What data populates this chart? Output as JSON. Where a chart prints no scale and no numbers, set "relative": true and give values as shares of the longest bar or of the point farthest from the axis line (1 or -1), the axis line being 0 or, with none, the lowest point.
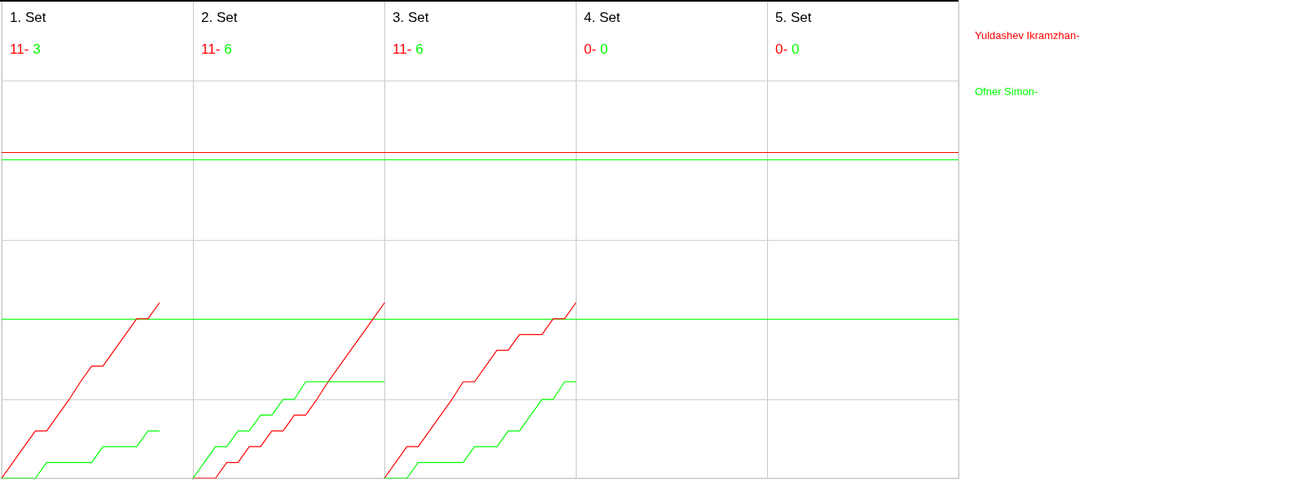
{
  "chart_data": {
    "type": "line",
    "relative": true,
    "tick_labels": false,
    "marker": "none",
    "line_style": "solid",
    "grid": "x",
    "annotations": [
      "1. Set",
      "11-",
      "3",
      "2. Set",
      "11-",
      "6",
      "3. Set",
      "11-",
      "6",
      "4. Set",
      "0-",
      "0",
      "5. Set",
      "0-",
      "0"
    ],
    "categories": [
      null,
      null,
      null,
      null,
      null,
      null,
      null,
      null,
      null,
      null,
      null,
      null,
      null,
      null,
      null,
      null,
      null,
      null,
      null,
      null,
      null,
      null,
      null,
      null,
      null,
      null,
      null,
      null,
      null,
      null,
      null,
      null,
      null,
      null,
      null,
      null,
      null,
      null,
      null,
      null,
      null,
      null,
      null,
      null,
      null,
      null,
      null,
      null,
      null,
      null,
      null,
      null,
      null,
      null,
      null,
      null,
      null,
      null,
      null,
      null,
      null,
      null,
      null,
      null,
      null,
      null,
      null,
      null,
      null,
      null,
      null,
      null,
      null,
      null,
      null,
      null,
      null,
      null,
      null,
      null,
      null,
      null,
      null,
      null,
      null,
      null
    ],
    "ref_lines": [
      {
        "axis": "y",
        "value": 0.45,
        "color": "#d0d0d0"
      },
      {
        "axis": "y",
        "value": 1.36,
        "color": "#d0d0d0"
      },
      {
        "axis": "y",
        "value": 2.27,
        "color": "#d0d0d0"
      },
      {
        "axis": "y",
        "value": 1.86,
        "color": "#ff0000"
      },
      {
        "axis": "y",
        "value": 1.82,
        "color": "#00ff00"
      },
      {
        "axis": "y",
        "value": 0.91,
        "color": "#00ff00"
      }
    ],
    "series": [
      {
        "name": "Yuldashev Ikramzhan-",
        "color": "#ff0000",
        "values": [
          0,
          0.09,
          0.18,
          0.27,
          0.27,
          0.36,
          0.45,
          0.55,
          0.64,
          0.64,
          0.73,
          0.82,
          0.91,
          0.91,
          1,
          null,
          null,
          null,
          null,
          null,
          null,
          null,
          null,
          null,
          null,
          null,
          null,
          null,
          null,
          null,
          null,
          null,
          null,
          null,
          null,
          null,
          null,
          null,
          null,
          null,
          null,
          null,
          null,
          null,
          null,
          null,
          null,
          null,
          null,
          null,
          null,
          null,
          null,
          null,
          null,
          null,
          null,
          null,
          null,
          null,
          null,
          null,
          null,
          null,
          null,
          null,
          null,
          null,
          null,
          null,
          null,
          null,
          null,
          null,
          null,
          null,
          null,
          null,
          null,
          null,
          null,
          null,
          null,
          null,
          null,
          null
        ]
      },
      {
        "name": "Ofner Simon-",
        "color": "#00ff00",
        "values": [
          0,
          0,
          0,
          0,
          0.09,
          0.09,
          0.09,
          0.09,
          0.09,
          0.18,
          0.18,
          0.18,
          0.18,
          0.27,
          0.27,
          null,
          null,
          null,
          null,
          null,
          null,
          null,
          null,
          null,
          null,
          null,
          null,
          null,
          null,
          null,
          null,
          null,
          null,
          null,
          null,
          null,
          null,
          null,
          null,
          null,
          null,
          null,
          null,
          null,
          null,
          null,
          null,
          null,
          null,
          null,
          null,
          null,
          null,
          null,
          null,
          null,
          null,
          null,
          null,
          null,
          null,
          null,
          null,
          null,
          null,
          null,
          null,
          null,
          null,
          null,
          null,
          null,
          null,
          null,
          null,
          null,
          null,
          null,
          null,
          null,
          null,
          null,
          null,
          null,
          null,
          null
        ]
      },
      {
        "color": "#ff0000",
        "values": [
          null,
          null,
          null,
          null,
          null,
          null,
          null,
          null,
          null,
          null,
          null,
          null,
          null,
          null,
          null,
          null,
          null,
          0,
          0,
          0,
          0.09,
          0.09,
          0.18,
          0.18,
          0.27,
          0.27,
          0.36,
          0.36,
          0.45,
          0.55,
          0.64,
          0.73,
          0.82,
          0.91,
          1,
          null,
          null,
          null,
          null,
          null,
          null,
          null,
          null,
          null,
          null,
          null,
          null,
          null,
          null,
          null,
          null,
          null,
          null,
          null,
          null,
          null,
          null,
          null,
          null,
          null,
          null,
          null,
          null,
          null,
          null,
          null,
          null,
          null,
          null,
          null,
          null,
          null,
          null,
          null,
          null,
          null,
          null,
          null,
          null,
          null,
          null,
          null,
          null,
          null,
          null,
          null
        ]
      },
      {
        "color": "#00ff00",
        "values": [
          null,
          null,
          null,
          null,
          null,
          null,
          null,
          null,
          null,
          null,
          null,
          null,
          null,
          null,
          null,
          null,
          null,
          0,
          0.09,
          0.18,
          0.18,
          0.27,
          0.27,
          0.36,
          0.36,
          0.45,
          0.45,
          0.55,
          0.55,
          0.55,
          0.55,
          0.55,
          0.55,
          0.55,
          0.55,
          null,
          null,
          null,
          null,
          null,
          null,
          null,
          null,
          null,
          null,
          null,
          null,
          null,
          null,
          null,
          null,
          null,
          null,
          null,
          null,
          null,
          null,
          null,
          null,
          null,
          null,
          null,
          null,
          null,
          null,
          null,
          null,
          null,
          null,
          null,
          null,
          null,
          null,
          null,
          null,
          null,
          null,
          null,
          null,
          null,
          null,
          null,
          null,
          null,
          null,
          null
        ]
      },
      {
        "color": "#ff0000",
        "values": [
          null,
          null,
          null,
          null,
          null,
          null,
          null,
          null,
          null,
          null,
          null,
          null,
          null,
          null,
          null,
          null,
          null,
          null,
          null,
          null,
          null,
          null,
          null,
          null,
          null,
          null,
          null,
          null,
          null,
          null,
          null,
          null,
          null,
          null,
          0,
          0.09,
          0.18,
          0.18,
          0.27,
          0.36,
          0.45,
          0.55,
          0.55,
          0.64,
          0.73,
          0.73,
          0.82,
          0.82,
          0.82,
          0.91,
          0.91,
          1,
          null,
          null,
          null,
          null,
          null,
          null,
          null,
          null,
          null,
          null,
          null,
          null,
          null,
          null,
          null,
          null,
          null,
          null,
          null,
          null,
          null,
          null,
          null,
          null,
          null,
          null,
          null,
          null,
          null,
          null,
          null,
          null,
          null,
          null
        ]
      },
      {
        "color": "#00ff00",
        "values": [
          null,
          null,
          null,
          null,
          null,
          null,
          null,
          null,
          null,
          null,
          null,
          null,
          null,
          null,
          null,
          null,
          null,
          null,
          null,
          null,
          null,
          null,
          null,
          null,
          null,
          null,
          null,
          null,
          null,
          null,
          null,
          null,
          null,
          null,
          0,
          0,
          0,
          0.09,
          0.09,
          0.09,
          0.09,
          0.09,
          0.18,
          0.18,
          0.18,
          0.27,
          0.27,
          0.36,
          0.45,
          0.45,
          0.55,
          0.55,
          null,
          null,
          null,
          null,
          null,
          null,
          null,
          null,
          null,
          null,
          null,
          null,
          null,
          null,
          null,
          null,
          null,
          null,
          null,
          null,
          null,
          null,
          null,
          null,
          null,
          null,
          null,
          null,
          null,
          null,
          null,
          null,
          null,
          null
        ]
      }
    ]
  }
}
